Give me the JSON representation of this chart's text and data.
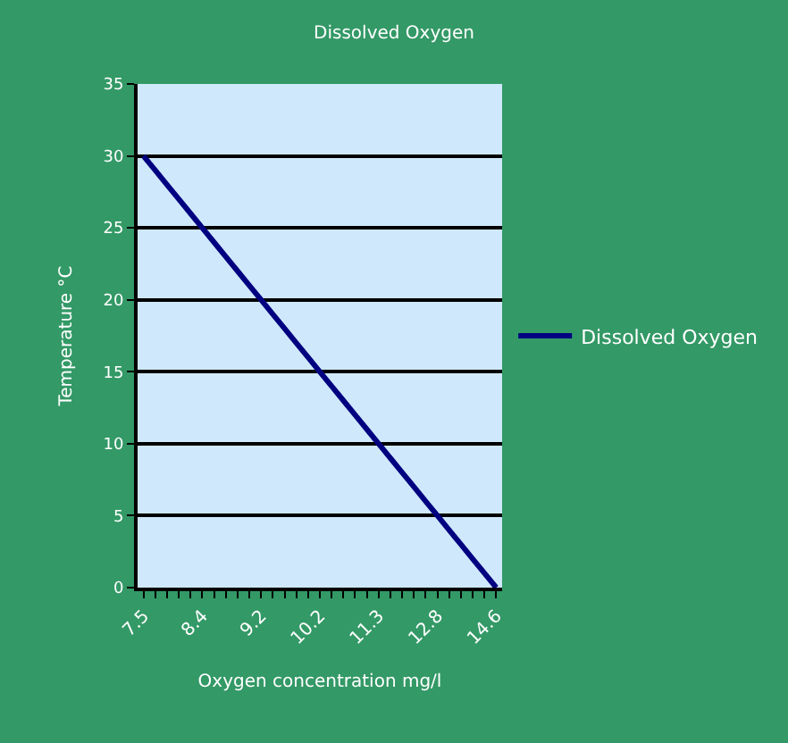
{
  "chart_data": {
    "type": "line",
    "title": "Dissolved Oxygen",
    "xlabel": "Oxygen concentration mg/l",
    "ylabel": "Temperature °C",
    "categories": [
      "7.5",
      null,
      null,
      null,
      null,
      "8.4",
      null,
      null,
      null,
      null,
      "9.2",
      null,
      null,
      null,
      null,
      "10.2",
      null,
      null,
      null,
      null,
      "11.3",
      null,
      null,
      null,
      null,
      "12.8",
      null,
      null,
      null,
      null,
      "14.6"
    ],
    "series": [
      {
        "name": "Dissolved Oxygen",
        "color": "#000080",
        "values": [
          30,
          29,
          28,
          27,
          26,
          25,
          24,
          23,
          22,
          21,
          20,
          19,
          18,
          17,
          16,
          15,
          14,
          13,
          12,
          11,
          10,
          9,
          8,
          7,
          6,
          5,
          4,
          3,
          2,
          1,
          0
        ]
      }
    ],
    "ylim": [
      0,
      35
    ],
    "yticks": [
      0,
      5,
      10,
      15,
      20,
      25,
      30,
      35
    ],
    "grid": "y",
    "legend": "right",
    "marker": "none",
    "line_style": "solid"
  }
}
